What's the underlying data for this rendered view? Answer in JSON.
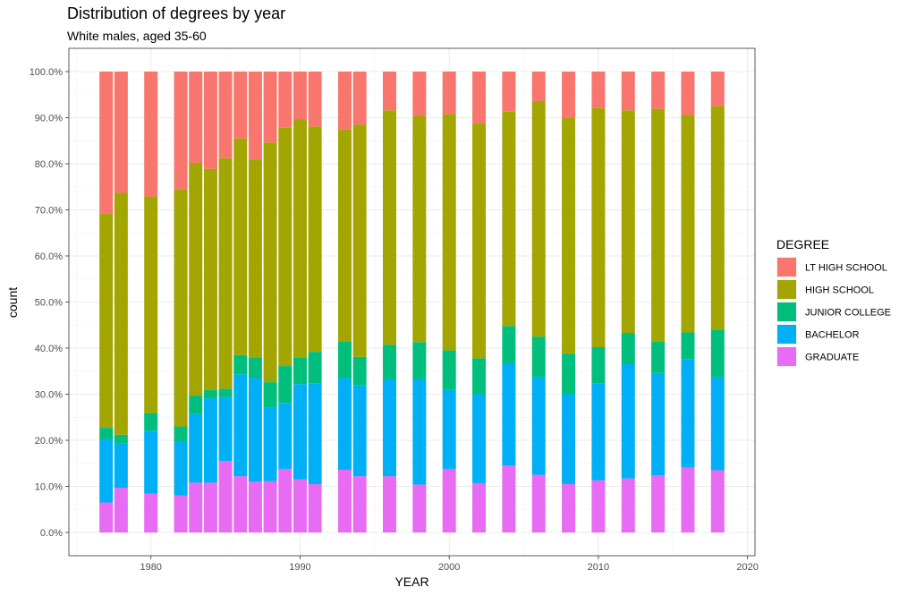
{
  "chart_data": {
    "type": "bar",
    "stacked": "percent",
    "title": "Distribution of degrees by year",
    "subtitle": "White males, aged 35-60",
    "xlabel": "YEAR",
    "ylabel": "count",
    "xlim": [
      1974.5,
      2020.5
    ],
    "ylim": [
      0,
      1
    ],
    "x_ticks": [
      1980,
      1990,
      2000,
      2010,
      2020
    ],
    "y_ticks": [
      0,
      0.1,
      0.2,
      0.3,
      0.4,
      0.5,
      0.6,
      0.7,
      0.8,
      0.9,
      1.0
    ],
    "y_tick_labels": [
      "0.0%",
      "10.0%",
      "20.0%",
      "30.0%",
      "40.0%",
      "50.0%",
      "60.0%",
      "70.0%",
      "80.0%",
      "90.0%",
      "100.0%"
    ],
    "grid": true,
    "legend": {
      "title": "DEGREE",
      "position": "right"
    },
    "x": [
      1977,
      1978,
      1980,
      1982,
      1983,
      1984,
      1985,
      1986,
      1987,
      1988,
      1989,
      1990,
      1991,
      1993,
      1994,
      1996,
      1998,
      2000,
      2002,
      2004,
      2006,
      2008,
      2010,
      2012,
      2014,
      2016,
      2018
    ],
    "series": [
      {
        "name": "LT HIGH SCHOOL",
        "color": "#F8766D",
        "values": [
          0.308,
          0.263,
          0.271,
          0.255,
          0.198,
          0.211,
          0.188,
          0.145,
          0.191,
          0.154,
          0.122,
          0.103,
          0.119,
          0.126,
          0.115,
          0.084,
          0.096,
          0.092,
          0.112,
          0.087,
          0.064,
          0.101,
          0.079,
          0.084,
          0.081,
          0.094,
          0.075
        ]
      },
      {
        "name": "HIGH SCHOOL",
        "color": "#A3A500",
        "values": [
          0.465,
          0.525,
          0.47,
          0.515,
          0.505,
          0.48,
          0.5,
          0.47,
          0.429,
          0.52,
          0.517,
          0.517,
          0.489,
          0.459,
          0.504,
          0.509,
          0.491,
          0.513,
          0.51,
          0.465,
          0.511,
          0.511,
          0.519,
          0.483,
          0.504,
          0.472,
          0.485
        ]
      },
      {
        "name": "JUNIOR COLLEGE",
        "color": "#00BF7D",
        "values": [
          0.025,
          0.018,
          0.038,
          0.032,
          0.04,
          0.018,
          0.018,
          0.042,
          0.045,
          0.055,
          0.08,
          0.058,
          0.068,
          0.08,
          0.062,
          0.074,
          0.08,
          0.086,
          0.078,
          0.081,
          0.088,
          0.088,
          0.079,
          0.068,
          0.069,
          0.058,
          0.103
        ]
      },
      {
        "name": "BACHELOR",
        "color": "#00B0F6",
        "values": [
          0.137,
          0.097,
          0.137,
          0.118,
          0.149,
          0.183,
          0.139,
          0.221,
          0.225,
          0.16,
          0.143,
          0.207,
          0.219,
          0.199,
          0.197,
          0.211,
          0.229,
          0.171,
          0.193,
          0.222,
          0.212,
          0.195,
          0.21,
          0.248,
          0.222,
          0.235,
          0.202
        ]
      },
      {
        "name": "GRADUATE",
        "color": "#E76BF3",
        "values": [
          0.065,
          0.097,
          0.084,
          0.08,
          0.108,
          0.108,
          0.155,
          0.122,
          0.11,
          0.111,
          0.138,
          0.115,
          0.105,
          0.136,
          0.122,
          0.122,
          0.104,
          0.138,
          0.107,
          0.145,
          0.125,
          0.105,
          0.113,
          0.117,
          0.124,
          0.141,
          0.135
        ]
      }
    ]
  }
}
